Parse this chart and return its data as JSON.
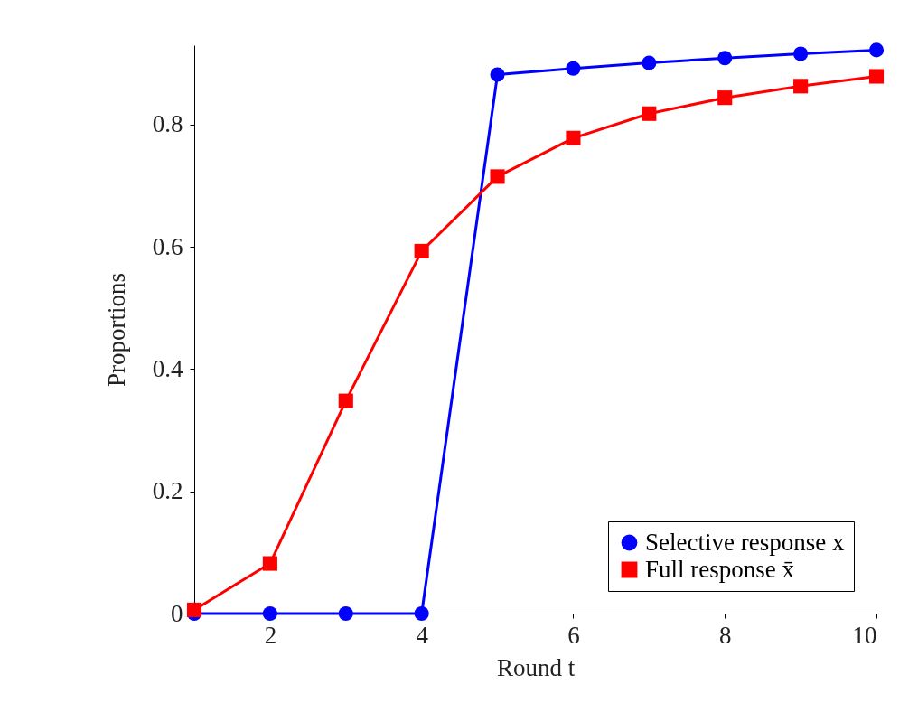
{
  "chart_data": {
    "type": "line",
    "xlabel": "Round t",
    "ylabel": "Proportions",
    "x": [
      1,
      2,
      3,
      4,
      5,
      6,
      7,
      8,
      9,
      10
    ],
    "series": [
      {
        "name": "Selective response x",
        "color": "#0000ff",
        "marker": "circle",
        "values": [
          0,
          0,
          0,
          0,
          0.882,
          0.892,
          0.901,
          0.909,
          0.916,
          0.922
        ]
      },
      {
        "name": "Full response x̄",
        "color": "#ff0000",
        "marker": "square",
        "values": [
          0.006,
          0.082,
          0.348,
          0.593,
          0.715,
          0.778,
          0.818,
          0.844,
          0.863,
          0.879
        ]
      }
    ],
    "xlim": [
      1,
      10
    ],
    "ylim": [
      0,
      0.93
    ],
    "xticks": [
      2,
      4,
      6,
      8,
      10
    ],
    "yticks": [
      0,
      0.2,
      0.4,
      0.6,
      0.8
    ],
    "grid": false,
    "legend": "bottom right",
    "line_style": "solid"
  }
}
